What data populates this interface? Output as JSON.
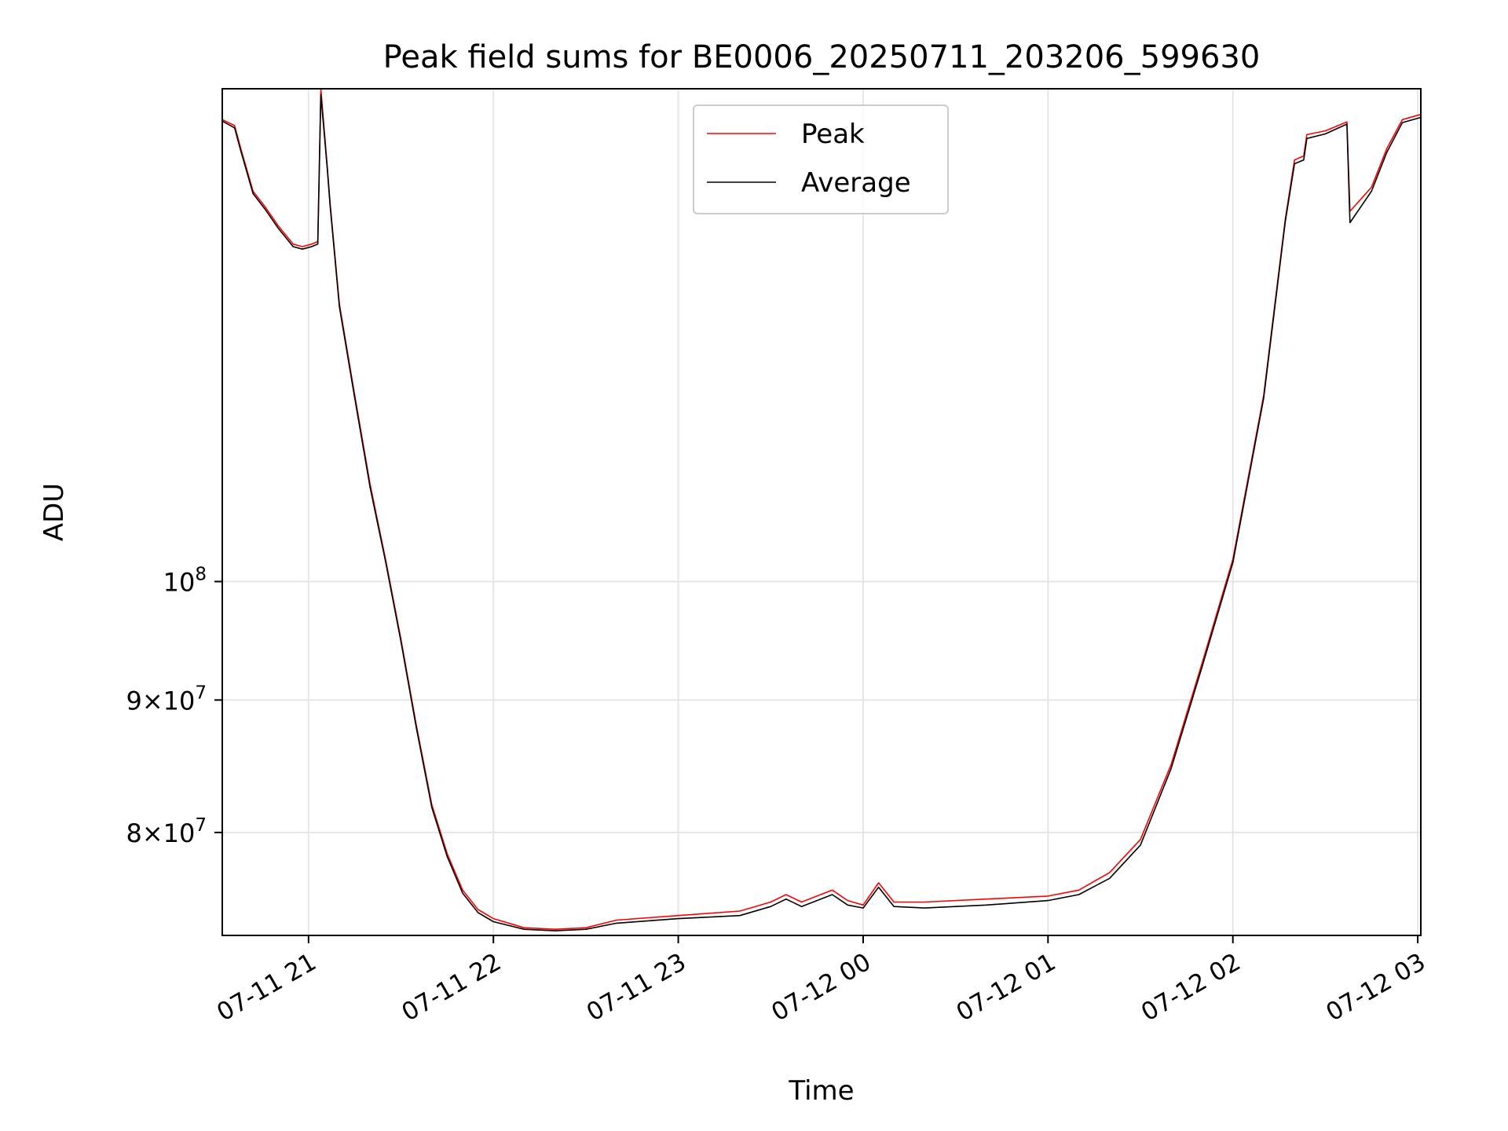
{
  "chart_data": {
    "type": "line",
    "title": "Peak field sums for BE0006_20250711_203206_599630",
    "xlabel": "Time",
    "ylabel": "ADU",
    "y_scale": "log",
    "x_ticks": [
      "07-11 21",
      "07-11 22",
      "07-11 23",
      "07-12 00",
      "07-12 01",
      "07-12 02",
      "07-12 03"
    ],
    "x_tick_values": [
      "2025-07-11 21:00",
      "2025-07-11 22:00",
      "2025-07-11 23:00",
      "2025-07-12 00:00",
      "2025-07-12 01:00",
      "2025-07-12 02:00",
      "2025-07-12 03:00"
    ],
    "y_ticks": [
      {
        "value": 80000000,
        "mantissa": "8",
        "exponent": "7"
      },
      {
        "value": 90000000,
        "mantissa": "9",
        "exponent": "7"
      },
      {
        "value": 100000000,
        "mantissa": "",
        "exponent": "8"
      }
    ],
    "xlim": [
      "2025-07-11 20:32",
      "2025-07-12 03:01"
    ],
    "ylim": [
      73000000,
      155000000
    ],
    "grid": true,
    "legend": {
      "position": "top-center"
    },
    "series": [
      {
        "name": "Peak",
        "color": "#ff0000",
        "points": [
          [
            "2025-07-11 20:32",
            150800000
          ],
          [
            "2025-07-11 20:36",
            150000000
          ],
          [
            "2025-07-11 20:38",
            147000000
          ],
          [
            "2025-07-11 20:42",
            141500000
          ],
          [
            "2025-07-11 20:46",
            139500000
          ],
          [
            "2025-07-11 20:50",
            137300000
          ],
          [
            "2025-07-11 20:55",
            135000000
          ],
          [
            "2025-07-11 20:58",
            134700000
          ],
          [
            "2025-07-11 21:01",
            135000000
          ],
          [
            "2025-07-11 21:03",
            135300000
          ],
          [
            "2025-07-11 21:04",
            155000000
          ],
          [
            "2025-07-11 21:06",
            145000000
          ],
          [
            "2025-07-11 21:07",
            140000000
          ],
          [
            "2025-07-11 21:10",
            128000000
          ],
          [
            "2025-07-11 21:15",
            118000000
          ],
          [
            "2025-07-11 21:20",
            109000000
          ],
          [
            "2025-07-11 21:25",
            102000000
          ],
          [
            "2025-07-11 21:30",
            95000000
          ],
          [
            "2025-07-11 21:35",
            88000000
          ],
          [
            "2025-07-11 21:40",
            82000000
          ],
          [
            "2025-07-11 21:45",
            78500000
          ],
          [
            "2025-07-11 21:50",
            76000000
          ],
          [
            "2025-07-11 21:55",
            74700000
          ],
          [
            "2025-07-11 22:00",
            74100000
          ],
          [
            "2025-07-11 22:10",
            73500000
          ],
          [
            "2025-07-11 22:20",
            73400000
          ],
          [
            "2025-07-11 22:30",
            73500000
          ],
          [
            "2025-07-11 22:40",
            74000000
          ],
          [
            "2025-07-11 23:00",
            74300000
          ],
          [
            "2025-07-11 23:20",
            74600000
          ],
          [
            "2025-07-11 23:30",
            75200000
          ],
          [
            "2025-07-11 23:35",
            75700000
          ],
          [
            "2025-07-11 23:40",
            75200000
          ],
          [
            "2025-07-11 23:50",
            76000000
          ],
          [
            "2025-07-11 23:55",
            75300000
          ],
          [
            "2025-07-12 00:00",
            75000000
          ],
          [
            "2025-07-12 00:05",
            76500000
          ],
          [
            "2025-07-12 00:10",
            75200000
          ],
          [
            "2025-07-12 00:20",
            75200000
          ],
          [
            "2025-07-12 00:40",
            75400000
          ],
          [
            "2025-07-12 01:00",
            75600000
          ],
          [
            "2025-07-12 01:10",
            76000000
          ],
          [
            "2025-07-12 01:20",
            77200000
          ],
          [
            "2025-07-12 01:30",
            79500000
          ],
          [
            "2025-07-12 01:40",
            85000000
          ],
          [
            "2025-07-12 01:50",
            93000000
          ],
          [
            "2025-07-12 02:00",
            102000000
          ],
          [
            "2025-07-12 02:10",
            118000000
          ],
          [
            "2025-07-12 02:17",
            138000000
          ],
          [
            "2025-07-12 02:20",
            145500000
          ],
          [
            "2025-07-12 02:23",
            146000000
          ],
          [
            "2025-07-12 02:24",
            148800000
          ],
          [
            "2025-07-12 02:30",
            149300000
          ],
          [
            "2025-07-12 02:37",
            150500000
          ],
          [
            "2025-07-12 02:38",
            139000000
          ],
          [
            "2025-07-12 02:45",
            142000000
          ],
          [
            "2025-07-12 02:50",
            147000000
          ],
          [
            "2025-07-12 02:55",
            150800000
          ],
          [
            "2025-07-12 03:01",
            151500000
          ]
        ]
      },
      {
        "name": "Average",
        "color": "#000000",
        "points": [
          [
            "2025-07-11 20:32",
            150600000
          ],
          [
            "2025-07-11 20:36",
            149700000
          ],
          [
            "2025-07-11 20:38",
            146700000
          ],
          [
            "2025-07-11 20:42",
            141200000
          ],
          [
            "2025-07-11 20:46",
            139200000
          ],
          [
            "2025-07-11 20:50",
            137000000
          ],
          [
            "2025-07-11 20:55",
            134700000
          ],
          [
            "2025-07-11 20:58",
            134400000
          ],
          [
            "2025-07-11 21:01",
            134700000
          ],
          [
            "2025-07-11 21:03",
            135000000
          ],
          [
            "2025-07-11 21:04",
            154200000
          ],
          [
            "2025-07-11 21:06",
            144700000
          ],
          [
            "2025-07-11 21:07",
            139700000
          ],
          [
            "2025-07-11 21:10",
            127700000
          ],
          [
            "2025-07-11 21:15",
            117700000
          ],
          [
            "2025-07-11 21:20",
            108700000
          ],
          [
            "2025-07-11 21:25",
            101800000
          ],
          [
            "2025-07-11 21:30",
            94800000
          ],
          [
            "2025-07-11 21:35",
            87800000
          ],
          [
            "2025-07-11 21:40",
            81800000
          ],
          [
            "2025-07-11 21:45",
            78300000
          ],
          [
            "2025-07-11 21:50",
            75800000
          ],
          [
            "2025-07-11 21:55",
            74500000
          ],
          [
            "2025-07-11 22:00",
            73900000
          ],
          [
            "2025-07-11 22:10",
            73400000
          ],
          [
            "2025-07-11 22:20",
            73300000
          ],
          [
            "2025-07-11 22:30",
            73400000
          ],
          [
            "2025-07-11 22:40",
            73800000
          ],
          [
            "2025-07-11 23:00",
            74100000
          ],
          [
            "2025-07-11 23:20",
            74300000
          ],
          [
            "2025-07-11 23:30",
            74900000
          ],
          [
            "2025-07-11 23:35",
            75400000
          ],
          [
            "2025-07-11 23:40",
            74900000
          ],
          [
            "2025-07-11 23:50",
            75700000
          ],
          [
            "2025-07-11 23:55",
            75000000
          ],
          [
            "2025-07-12 00:00",
            74800000
          ],
          [
            "2025-07-12 00:05",
            76200000
          ],
          [
            "2025-07-12 00:10",
            74900000
          ],
          [
            "2025-07-12 00:20",
            74800000
          ],
          [
            "2025-07-12 00:40",
            75000000
          ],
          [
            "2025-07-12 01:00",
            75300000
          ],
          [
            "2025-07-12 01:10",
            75700000
          ],
          [
            "2025-07-12 01:20",
            76800000
          ],
          [
            "2025-07-12 01:30",
            79100000
          ],
          [
            "2025-07-12 01:40",
            84700000
          ],
          [
            "2025-07-12 01:50",
            92700000
          ],
          [
            "2025-07-12 02:00",
            101700000
          ],
          [
            "2025-07-12 02:10",
            117700000
          ],
          [
            "2025-07-12 02:17",
            137700000
          ],
          [
            "2025-07-12 02:20",
            145000000
          ],
          [
            "2025-07-12 02:23",
            145500000
          ],
          [
            "2025-07-12 02:24",
            148300000
          ],
          [
            "2025-07-12 02:30",
            148900000
          ],
          [
            "2025-07-12 02:37",
            150200000
          ],
          [
            "2025-07-12 02:38",
            137600000
          ],
          [
            "2025-07-12 02:45",
            141500000
          ],
          [
            "2025-07-12 02:50",
            146500000
          ],
          [
            "2025-07-12 02:55",
            150400000
          ],
          [
            "2025-07-12 03:01",
            151100000
          ]
        ]
      }
    ]
  }
}
